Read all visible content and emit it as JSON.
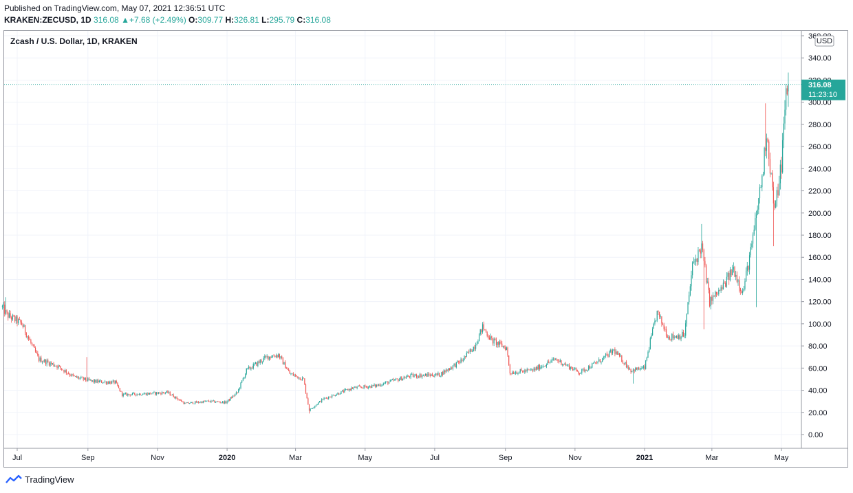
{
  "published_line": "Published on TradingView.com, May 07, 2021 12:36:51 UTC",
  "header": {
    "symbol": "KRAKEN:ZECUSD, 1D",
    "last": "316.08",
    "change_arrow": "▲",
    "change": "+7.68 (+2.49%)",
    "open_label": "O:",
    "open": "309.77",
    "high_label": "H:",
    "high": "326.81",
    "low_label": "L:",
    "low": "295.79",
    "close_label": "C:",
    "close": "316.08"
  },
  "colors": {
    "up": "#26a69a",
    "down": "#ef5350",
    "grid": "#f0f3fa",
    "border": "#9598a1",
    "text": "#131722"
  },
  "footer": {
    "brand": "TradingView",
    "logo_icon": "tradingview-logo-icon"
  },
  "chart_data": {
    "type": "candlestick",
    "title": "Zcash / U.S. Dollar, 1D, KRAKEN",
    "currency_label": "USD",
    "last_price_label": "316.08",
    "countdown_label": "11:23:10",
    "ylim": [
      -20,
      360
    ],
    "y_ticks": [
      "0.00",
      "20.00",
      "40.00",
      "60.00",
      "80.00",
      "100.00",
      "120.00",
      "140.00",
      "160.00",
      "180.00",
      "200.00",
      "220.00",
      "240.00",
      "260.00",
      "280.00",
      "300.00",
      "320.00",
      "340.00",
      "360.00"
    ],
    "x_ticks": [
      {
        "label": "Jul",
        "date": "2019-07-01",
        "bold": false
      },
      {
        "label": "Sep",
        "date": "2019-09-01",
        "bold": false
      },
      {
        "label": "Nov",
        "date": "2019-11-01",
        "bold": false
      },
      {
        "label": "2020",
        "date": "2020-01-01",
        "bold": true
      },
      {
        "label": "Mar",
        "date": "2020-03-01",
        "bold": false
      },
      {
        "label": "May",
        "date": "2020-05-01",
        "bold": false
      },
      {
        "label": "Jul",
        "date": "2020-07-01",
        "bold": false
      },
      {
        "label": "Sep",
        "date": "2020-09-01",
        "bold": false
      },
      {
        "label": "Nov",
        "date": "2020-11-01",
        "bold": false
      },
      {
        "label": "2021",
        "date": "2021-01-01",
        "bold": true
      },
      {
        "label": "Mar",
        "date": "2021-03-01",
        "bold": false
      },
      {
        "label": "May",
        "date": "2021-05-01",
        "bold": false
      }
    ],
    "x_range": [
      "2019-06-17",
      "2021-06-01"
    ],
    "first_date": "2019-06-18",
    "interval": "1D",
    "price_path": [
      {
        "date": "2019-06-18",
        "close": 115
      },
      {
        "date": "2019-06-22",
        "close": 108
      },
      {
        "date": "2019-07-05",
        "close": 100
      },
      {
        "date": "2019-07-15",
        "close": 78
      },
      {
        "date": "2019-07-20",
        "close": 68
      },
      {
        "date": "2019-08-05",
        "close": 62
      },
      {
        "date": "2019-08-20",
        "close": 52
      },
      {
        "date": "2019-09-05",
        "close": 48
      },
      {
        "date": "2019-09-25",
        "close": 47
      },
      {
        "date": "2019-10-01",
        "close": 36
      },
      {
        "date": "2019-10-25",
        "close": 37
      },
      {
        "date": "2019-11-10",
        "close": 38
      },
      {
        "date": "2019-11-25",
        "close": 28
      },
      {
        "date": "2019-12-15",
        "close": 30
      },
      {
        "date": "2019-12-31",
        "close": 29
      },
      {
        "date": "2020-01-10",
        "close": 38
      },
      {
        "date": "2020-01-18",
        "close": 58
      },
      {
        "date": "2020-02-05",
        "close": 70
      },
      {
        "date": "2020-02-15",
        "close": 72
      },
      {
        "date": "2020-02-25",
        "close": 55
      },
      {
        "date": "2020-03-08",
        "close": 50
      },
      {
        "date": "2020-03-13",
        "close": 22
      },
      {
        "date": "2020-03-25",
        "close": 32
      },
      {
        "date": "2020-04-20",
        "close": 42
      },
      {
        "date": "2020-05-10",
        "close": 44
      },
      {
        "date": "2020-06-10",
        "close": 53
      },
      {
        "date": "2020-07-05",
        "close": 54
      },
      {
        "date": "2020-07-25",
        "close": 67
      },
      {
        "date": "2020-08-05",
        "close": 80
      },
      {
        "date": "2020-08-12",
        "close": 97
      },
      {
        "date": "2020-08-20",
        "close": 85
      },
      {
        "date": "2020-09-02",
        "close": 78
      },
      {
        "date": "2020-09-05",
        "close": 56
      },
      {
        "date": "2020-09-25",
        "close": 58
      },
      {
        "date": "2020-10-15",
        "close": 68
      },
      {
        "date": "2020-11-05",
        "close": 56
      },
      {
        "date": "2020-11-25",
        "close": 68
      },
      {
        "date": "2020-12-05",
        "close": 76
      },
      {
        "date": "2020-12-20",
        "close": 58
      },
      {
        "date": "2021-01-01",
        "close": 60
      },
      {
        "date": "2021-01-06",
        "close": 84
      },
      {
        "date": "2021-01-12",
        "close": 110
      },
      {
        "date": "2021-01-22",
        "close": 88
      },
      {
        "date": "2021-02-05",
        "close": 90
      },
      {
        "date": "2021-02-12",
        "close": 152
      },
      {
        "date": "2021-02-20",
        "close": 170
      },
      {
        "date": "2021-02-27",
        "close": 120
      },
      {
        "date": "2021-03-10",
        "close": 132
      },
      {
        "date": "2021-03-20",
        "close": 150
      },
      {
        "date": "2021-03-28",
        "close": 128
      },
      {
        "date": "2021-04-05",
        "close": 170
      },
      {
        "date": "2021-04-15",
        "close": 240
      },
      {
        "date": "2021-04-18",
        "close": 275
      },
      {
        "date": "2021-04-25",
        "close": 200
      },
      {
        "date": "2021-05-01",
        "close": 245
      },
      {
        "date": "2021-05-05",
        "close": 308
      },
      {
        "date": "2021-05-07",
        "close": 316.08
      }
    ],
    "highlighted_bars": [
      {
        "date": "2019-06-21",
        "high": 124
      },
      {
        "date": "2019-08-31",
        "high": 70
      },
      {
        "date": "2020-03-13",
        "low": 19
      },
      {
        "date": "2020-08-13",
        "high": 102
      },
      {
        "date": "2020-12-22",
        "low": 46
      },
      {
        "date": "2021-02-20",
        "high": 190
      },
      {
        "date": "2021-02-22",
        "low": 95
      },
      {
        "date": "2021-04-09",
        "low": 115
      },
      {
        "date": "2021-04-17",
        "high": 299
      },
      {
        "date": "2021-04-24",
        "low": 170
      },
      {
        "date": "2021-05-07",
        "high": 326.81
      }
    ],
    "last_bar": {
      "date": "2021-05-07",
      "open": 309.77,
      "high": 326.81,
      "low": 295.79,
      "close": 316.08
    }
  }
}
